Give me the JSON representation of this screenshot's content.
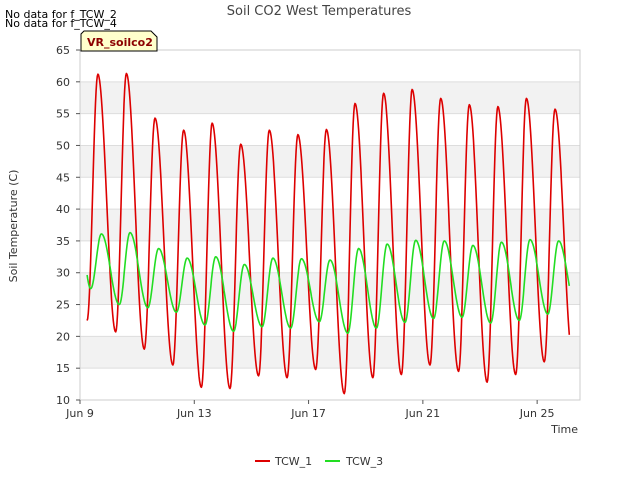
{
  "notes": [
    "No data for f_TCW_2",
    "No data for f_TCW_4"
  ],
  "station_label": "VR_soilco2",
  "colors": {
    "TCW_1": "#dd0000",
    "TCW_3": "#22dd22",
    "band": "#f2f2f2",
    "station_bg": "#ffffcc"
  },
  "chart_data": {
    "type": "line",
    "title": "Soil CO2 West Temperatures",
    "xlabel": "Time",
    "ylabel": "Soil Temperature (C)",
    "ylim": [
      10,
      65
    ],
    "yticks": [
      10,
      15,
      20,
      25,
      30,
      35,
      40,
      45,
      50,
      55,
      60,
      65
    ],
    "xlim": [
      "2023-06-09",
      "2023-06-26 12:00"
    ],
    "xticks": [
      {
        "value": "2023-06-09",
        "label": "Jun 9"
      },
      {
        "value": "2023-06-13",
        "label": "Jun 13"
      },
      {
        "value": "2023-06-17",
        "label": "Jun 17"
      },
      {
        "value": "2023-06-21",
        "label": "Jun 21"
      },
      {
        "value": "2023-06-25",
        "label": "Jun 25"
      }
    ],
    "grid": true,
    "legend": "bottom",
    "series": [
      {
        "name": "TCW_1",
        "start": "2023-06-09 06:00",
        "end": "2023-06-26 03:00",
        "peak_hour": 15,
        "min_hour": 6,
        "daily_max": [
          61.2,
          61.3,
          54.3,
          52.4,
          53.5,
          50.2,
          52.4,
          51.7,
          52.5,
          56.6,
          58.2,
          58.8,
          57.4,
          56.4,
          56.1,
          57.4,
          55.7
        ],
        "daily_min": [
          22.5,
          20.7,
          18.0,
          15.5,
          12.0,
          11.8,
          13.8,
          13.5,
          14.8,
          11.0,
          13.5,
          14.0,
          15.5,
          14.5,
          12.8,
          14.0,
          16.0,
          16.5,
          21.9
        ]
      },
      {
        "name": "TCW_3",
        "start": "2023-06-09 06:00",
        "end": "2023-06-26 03:00",
        "peak_hour": 18,
        "min_hour": 9,
        "daily_max": [
          36.1,
          36.3,
          33.8,
          32.3,
          32.5,
          31.3,
          32.3,
          32.2,
          32.0,
          33.8,
          34.5,
          35.1,
          35.0,
          34.3,
          34.8,
          35.2,
          35.0
        ],
        "daily_min": [
          27.5,
          25.0,
          24.5,
          23.8,
          21.8,
          20.8,
          21.5,
          21.3,
          22.3,
          20.5,
          21.3,
          22.2,
          22.8,
          23.0,
          22.1,
          22.5,
          23.5,
          24.2,
          27.5
        ]
      }
    ]
  }
}
